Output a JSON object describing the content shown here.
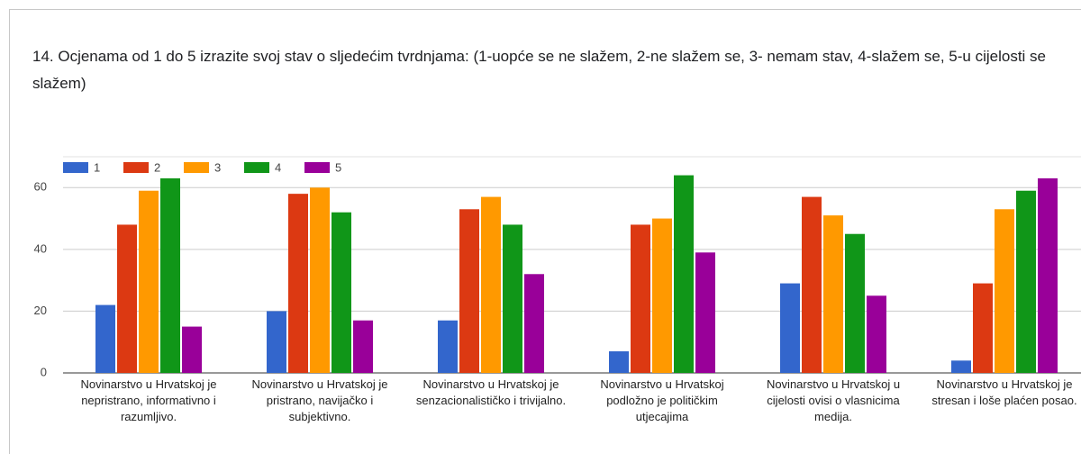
{
  "chart_data": {
    "type": "bar",
    "title": "14. Ocjenama od 1 do 5 izrazite svoj stav o sljedećim tvrdnjama:  (1-uopće se ne slažem, 2-ne slažem se, 3- nemam stav, 4-slažem se, 5-u cijelosti se slažem)",
    "categories": [
      "Novinarstvo u Hrvatskoj je nepristrano, informativno i razumljivo.",
      "Novinarstvo u Hrvatskoj je pristrano, navijačko i subjektivno.",
      "Novinarstvo u Hrvatskoj je senzacionalističko i trivijalno.",
      "Novinarstvo u Hrvatskoj podložno je političkim utjecajima",
      "Novinarstvo u Hrvatskoj u cijelosti ovisi o vlasnicima medija.",
      "Novinarstvo u Hrvatskoj je stresan i loše plaćen posao."
    ],
    "series": [
      {
        "name": "1",
        "color": "#3366cc",
        "values": [
          22,
          20,
          17,
          7,
          29,
          4
        ]
      },
      {
        "name": "2",
        "color": "#dc3912",
        "values": [
          48,
          58,
          53,
          48,
          57,
          29
        ]
      },
      {
        "name": "3",
        "color": "#ff9900",
        "values": [
          59,
          60,
          57,
          50,
          51,
          53
        ]
      },
      {
        "name": "4",
        "color": "#109618",
        "values": [
          63,
          52,
          48,
          64,
          45,
          59
        ]
      },
      {
        "name": "5",
        "color": "#990099",
        "values": [
          15,
          17,
          32,
          39,
          25,
          63
        ]
      }
    ],
    "ylim": [
      0,
      70
    ],
    "yticks": [
      0,
      20,
      40,
      60
    ],
    "grid": true,
    "legend": "top"
  }
}
